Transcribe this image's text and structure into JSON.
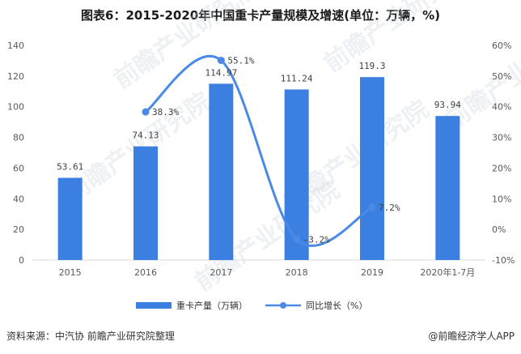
{
  "chart_data": {
    "type": "bar+line",
    "title": "图表6：2015-2020年中国重卡产量规模及增速(单位：万辆，%)",
    "categories": [
      "2015",
      "2016",
      "2017",
      "2018",
      "2019",
      "2020年1-7月"
    ],
    "bars": {
      "name": "重卡产量（万辆）",
      "values": [
        53.61,
        74.13,
        114.97,
        111.24,
        119.3,
        93.94
      ],
      "labels": [
        "53.61",
        "74.13",
        "114.97",
        "111.24",
        "119.3",
        "93.94"
      ],
      "color": "#3b7fe0"
    },
    "line": {
      "name": "同比增长（%）",
      "values": [
        null,
        38.3,
        55.1,
        -3.2,
        7.2,
        null
      ],
      "labels": [
        "",
        "38.3%",
        "55.1%",
        "-3.2%",
        "7.2%",
        ""
      ],
      "color": "#4a8ae6"
    },
    "y_left": {
      "min": 0,
      "max": 140,
      "ticks": [
        "0",
        "20",
        "40",
        "60",
        "80",
        "100",
        "120",
        "140"
      ]
    },
    "y_right": {
      "min": -10,
      "max": 60,
      "ticks": [
        "-10%",
        "0%",
        "10%",
        "20%",
        "30%",
        "40%",
        "50%",
        "60%"
      ]
    },
    "grid": false,
    "legend_position": "bottom"
  },
  "footer": {
    "source": "资料来源：中汽协 前瞻产业研究院整理",
    "brand": "@前瞻经济学人APP"
  },
  "watermark_text": "前瞻产业研究院"
}
